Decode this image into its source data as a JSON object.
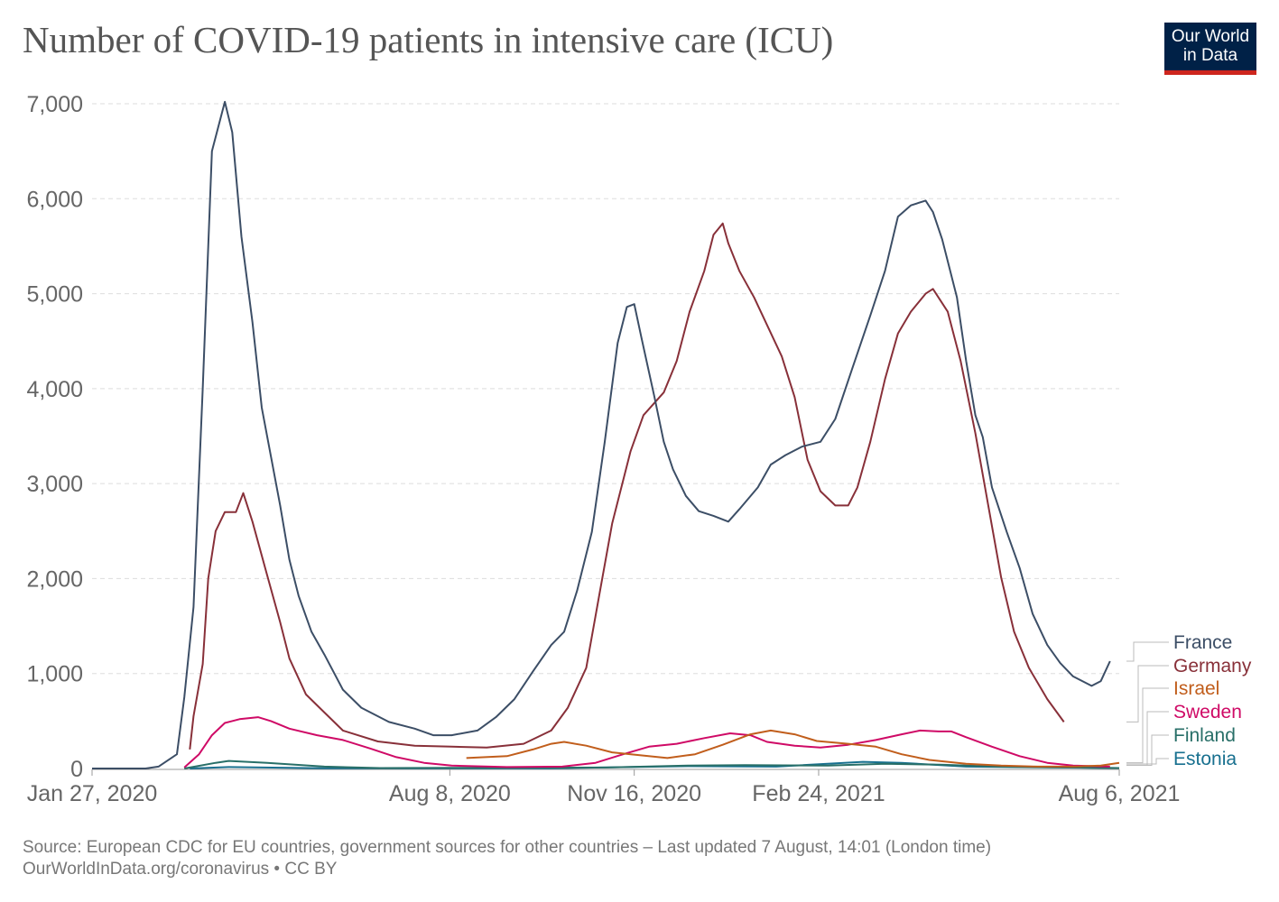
{
  "title": "Number of COVID-19 patients in intensive care (ICU)",
  "logo": {
    "line1": "Our World",
    "line2": "in Data",
    "bg": "#002147",
    "accent": "#ce261e"
  },
  "source": {
    "line1": "Source: European CDC for EU countries, government sources for other countries – Last updated 7 August, 14:01 (London time)",
    "line2": "OurWorldInData.org/coronavirus • CC BY"
  },
  "chart_data": {
    "type": "line",
    "title": "Number of COVID-19 patients in intensive care (ICU)",
    "xlabel": "",
    "ylabel": "",
    "xlim": [
      "2020-01-27",
      "2021-08-06"
    ],
    "ylim": [
      0,
      7000
    ],
    "y_ticks": [
      {
        "v": 0,
        "label": "0"
      },
      {
        "v": 1000,
        "label": "1,000"
      },
      {
        "v": 2000,
        "label": "2,000"
      },
      {
        "v": 3000,
        "label": "3,000"
      },
      {
        "v": 4000,
        "label": "4,000"
      },
      {
        "v": 5000,
        "label": "5,000"
      },
      {
        "v": 6000,
        "label": "6,000"
      },
      {
        "v": 7000,
        "label": "7,000"
      }
    ],
    "x_ticks": [
      {
        "d": "2020-01-27",
        "label": "Jan 27, 2020"
      },
      {
        "d": "2020-08-08",
        "label": "Aug 8, 2020"
      },
      {
        "d": "2020-11-16",
        "label": "Nov 16, 2020"
      },
      {
        "d": "2021-02-24",
        "label": "Feb 24, 2021"
      },
      {
        "d": "2021-08-06",
        "label": "Aug 6, 2021"
      }
    ],
    "grid": "horizontal dashed",
    "legend": "right (line-end labels)",
    "series": [
      {
        "name": "France",
        "color": "#3c4e66",
        "points": [
          [
            "2020-01-27",
            0
          ],
          [
            "2020-02-25",
            0
          ],
          [
            "2020-03-03",
            20
          ],
          [
            "2020-03-13",
            150
          ],
          [
            "2020-03-17",
            750
          ],
          [
            "2020-03-22",
            1700
          ],
          [
            "2020-03-27",
            4000
          ],
          [
            "2020-04-01",
            6500
          ],
          [
            "2020-04-08",
            7020
          ],
          [
            "2020-04-12",
            6700
          ],
          [
            "2020-04-17",
            5600
          ],
          [
            "2020-04-23",
            4700
          ],
          [
            "2020-04-28",
            3800
          ],
          [
            "2020-05-08",
            2770
          ],
          [
            "2020-05-13",
            2200
          ],
          [
            "2020-05-18",
            1820
          ],
          [
            "2020-05-25",
            1440
          ],
          [
            "2020-06-01",
            1200
          ],
          [
            "2020-06-11",
            830
          ],
          [
            "2020-06-21",
            640
          ],
          [
            "2020-07-06",
            490
          ],
          [
            "2020-07-20",
            420
          ],
          [
            "2020-07-30",
            350
          ],
          [
            "2020-08-09",
            350
          ],
          [
            "2020-08-23",
            400
          ],
          [
            "2020-09-02",
            540
          ],
          [
            "2020-09-12",
            730
          ],
          [
            "2020-09-22",
            1020
          ],
          [
            "2020-10-02",
            1300
          ],
          [
            "2020-10-09",
            1440
          ],
          [
            "2020-10-16",
            1870
          ],
          [
            "2020-10-24",
            2490
          ],
          [
            "2020-10-31",
            3440
          ],
          [
            "2020-11-07",
            4480
          ],
          [
            "2020-11-12",
            4860
          ],
          [
            "2020-11-16",
            4890
          ],
          [
            "2020-11-20",
            4530
          ],
          [
            "2020-11-27",
            3910
          ],
          [
            "2020-12-02",
            3440
          ],
          [
            "2020-12-07",
            3150
          ],
          [
            "2020-12-14",
            2870
          ],
          [
            "2020-12-21",
            2710
          ],
          [
            "2020-12-29",
            2660
          ],
          [
            "2021-01-06",
            2600
          ],
          [
            "2021-01-12",
            2730
          ],
          [
            "2021-01-22",
            2960
          ],
          [
            "2021-01-29",
            3200
          ],
          [
            "2021-02-06",
            3300
          ],
          [
            "2021-02-15",
            3390
          ],
          [
            "2021-02-25",
            3440
          ],
          [
            "2021-03-05",
            3680
          ],
          [
            "2021-03-14",
            4200
          ],
          [
            "2021-03-24",
            4770
          ],
          [
            "2021-04-01",
            5240
          ],
          [
            "2021-04-08",
            5810
          ],
          [
            "2021-04-15",
            5930
          ],
          [
            "2021-04-23",
            5980
          ],
          [
            "2021-04-27",
            5860
          ],
          [
            "2021-05-02",
            5570
          ],
          [
            "2021-05-10",
            4960
          ],
          [
            "2021-05-15",
            4290
          ],
          [
            "2021-05-20",
            3720
          ],
          [
            "2021-05-24",
            3490
          ],
          [
            "2021-05-29",
            2960
          ],
          [
            "2021-06-06",
            2490
          ],
          [
            "2021-06-13",
            2110
          ],
          [
            "2021-06-20",
            1630
          ],
          [
            "2021-06-28",
            1300
          ],
          [
            "2021-07-05",
            1110
          ],
          [
            "2021-07-12",
            970
          ],
          [
            "2021-07-22",
            870
          ],
          [
            "2021-07-27",
            920
          ],
          [
            "2021-08-01",
            1130
          ]
        ]
      },
      {
        "name": "Germany",
        "color": "#883039",
        "points": [
          [
            "2020-03-20",
            200
          ],
          [
            "2020-03-22",
            550
          ],
          [
            "2020-03-27",
            1100
          ],
          [
            "2020-03-30",
            2000
          ],
          [
            "2020-04-03",
            2500
          ],
          [
            "2020-04-08",
            2700
          ],
          [
            "2020-04-14",
            2700
          ],
          [
            "2020-04-18",
            2900
          ],
          [
            "2020-04-23",
            2600
          ],
          [
            "2020-04-30",
            2100
          ],
          [
            "2020-05-08",
            1540
          ],
          [
            "2020-05-13",
            1160
          ],
          [
            "2020-05-22",
            780
          ],
          [
            "2020-06-01",
            590
          ],
          [
            "2020-06-11",
            400
          ],
          [
            "2020-06-30",
            285
          ],
          [
            "2020-07-20",
            240
          ],
          [
            "2020-08-09",
            230
          ],
          [
            "2020-08-28",
            220
          ],
          [
            "2020-09-17",
            260
          ],
          [
            "2020-10-02",
            400
          ],
          [
            "2020-10-11",
            640
          ],
          [
            "2020-10-21",
            1060
          ],
          [
            "2020-10-28",
            1820
          ],
          [
            "2020-11-04",
            2580
          ],
          [
            "2020-11-14",
            3340
          ],
          [
            "2020-11-21",
            3720
          ],
          [
            "2020-12-02",
            3960
          ],
          [
            "2020-12-09",
            4290
          ],
          [
            "2020-12-16",
            4810
          ],
          [
            "2020-12-24",
            5240
          ],
          [
            "2020-12-29",
            5620
          ],
          [
            "2021-01-03",
            5740
          ],
          [
            "2021-01-06",
            5530
          ],
          [
            "2021-01-12",
            5240
          ],
          [
            "2021-01-20",
            4960
          ],
          [
            "2021-01-27",
            4670
          ],
          [
            "2021-02-04",
            4340
          ],
          [
            "2021-02-11",
            3910
          ],
          [
            "2021-02-18",
            3250
          ],
          [
            "2021-02-25",
            2920
          ],
          [
            "2021-03-05",
            2770
          ],
          [
            "2021-03-12",
            2770
          ],
          [
            "2021-03-17",
            2960
          ],
          [
            "2021-03-24",
            3440
          ],
          [
            "2021-04-01",
            4100
          ],
          [
            "2021-04-08",
            4580
          ],
          [
            "2021-04-15",
            4810
          ],
          [
            "2021-04-23",
            5000
          ],
          [
            "2021-04-27",
            5050
          ],
          [
            "2021-05-05",
            4810
          ],
          [
            "2021-05-12",
            4290
          ],
          [
            "2021-05-20",
            3530
          ],
          [
            "2021-05-27",
            2770
          ],
          [
            "2021-06-03",
            2010
          ],
          [
            "2021-06-10",
            1440
          ],
          [
            "2021-06-18",
            1060
          ],
          [
            "2021-06-28",
            730
          ],
          [
            "2021-07-07",
            490
          ]
        ]
      },
      {
        "name": "Israel",
        "color": "#c15e1c",
        "points": [
          [
            "2020-08-17",
            110
          ],
          [
            "2020-09-08",
            130
          ],
          [
            "2020-09-22",
            200
          ],
          [
            "2020-10-02",
            260
          ],
          [
            "2020-10-09",
            280
          ],
          [
            "2020-10-21",
            240
          ],
          [
            "2020-11-04",
            170
          ],
          [
            "2020-11-19",
            140
          ],
          [
            "2020-12-04",
            110
          ],
          [
            "2020-12-19",
            150
          ],
          [
            "2021-01-03",
            250
          ],
          [
            "2021-01-18",
            360
          ],
          [
            "2021-01-29",
            400
          ],
          [
            "2021-02-11",
            360
          ],
          [
            "2021-02-23",
            290
          ],
          [
            "2021-03-12",
            260
          ],
          [
            "2021-03-27",
            230
          ],
          [
            "2021-04-10",
            150
          ],
          [
            "2021-04-25",
            90
          ],
          [
            "2021-05-15",
            50
          ],
          [
            "2021-06-03",
            30
          ],
          [
            "2021-06-23",
            20
          ],
          [
            "2021-07-12",
            20
          ],
          [
            "2021-07-27",
            30
          ],
          [
            "2021-08-06",
            60
          ]
        ]
      },
      {
        "name": "Sweden",
        "color": "#cf0a66",
        "points": [
          [
            "2020-03-17",
            10
          ],
          [
            "2020-03-25",
            150
          ],
          [
            "2020-04-01",
            350
          ],
          [
            "2020-04-08",
            480
          ],
          [
            "2020-04-16",
            520
          ],
          [
            "2020-04-26",
            540
          ],
          [
            "2020-05-03",
            500
          ],
          [
            "2020-05-13",
            420
          ],
          [
            "2020-05-28",
            350
          ],
          [
            "2020-06-11",
            300
          ],
          [
            "2020-06-26",
            210
          ],
          [
            "2020-07-10",
            120
          ],
          [
            "2020-07-25",
            60
          ],
          [
            "2020-08-09",
            30
          ],
          [
            "2020-09-08",
            15
          ],
          [
            "2020-10-08",
            20
          ],
          [
            "2020-10-26",
            60
          ],
          [
            "2020-11-10",
            150
          ],
          [
            "2020-11-24",
            230
          ],
          [
            "2020-12-09",
            260
          ],
          [
            "2020-12-24",
            320
          ],
          [
            "2021-01-07",
            370
          ],
          [
            "2021-01-18",
            350
          ],
          [
            "2021-01-27",
            280
          ],
          [
            "2021-02-11",
            240
          ],
          [
            "2021-02-25",
            220
          ],
          [
            "2021-03-12",
            250
          ],
          [
            "2021-03-27",
            300
          ],
          [
            "2021-04-10",
            360
          ],
          [
            "2021-04-20",
            400
          ],
          [
            "2021-04-30",
            390
          ],
          [
            "2021-05-07",
            390
          ],
          [
            "2021-05-15",
            330
          ],
          [
            "2021-05-29",
            230
          ],
          [
            "2021-06-13",
            130
          ],
          [
            "2021-06-28",
            60
          ],
          [
            "2021-07-12",
            30
          ],
          [
            "2021-08-01",
            20
          ]
        ]
      },
      {
        "name": "Finland",
        "color": "#286f68",
        "points": [
          [
            "2020-03-17",
            0
          ],
          [
            "2020-04-03",
            60
          ],
          [
            "2020-04-10",
            80
          ],
          [
            "2020-05-01",
            60
          ],
          [
            "2020-06-01",
            20
          ],
          [
            "2020-07-01",
            5
          ],
          [
            "2020-11-01",
            10
          ],
          [
            "2020-12-15",
            30
          ],
          [
            "2021-01-15",
            35
          ],
          [
            "2021-03-01",
            30
          ],
          [
            "2021-04-01",
            50
          ],
          [
            "2021-05-01",
            40
          ],
          [
            "2021-06-01",
            20
          ],
          [
            "2021-08-06",
            5
          ]
        ]
      },
      {
        "name": "Estonia",
        "color": "#18708f",
        "points": [
          [
            "2020-03-20",
            0
          ],
          [
            "2020-04-10",
            15
          ],
          [
            "2020-06-01",
            3
          ],
          [
            "2020-10-01",
            2
          ],
          [
            "2020-12-15",
            25
          ],
          [
            "2021-02-01",
            20
          ],
          [
            "2021-03-20",
            70
          ],
          [
            "2021-04-10",
            60
          ],
          [
            "2021-05-15",
            20
          ],
          [
            "2021-08-06",
            5
          ]
        ]
      }
    ]
  }
}
